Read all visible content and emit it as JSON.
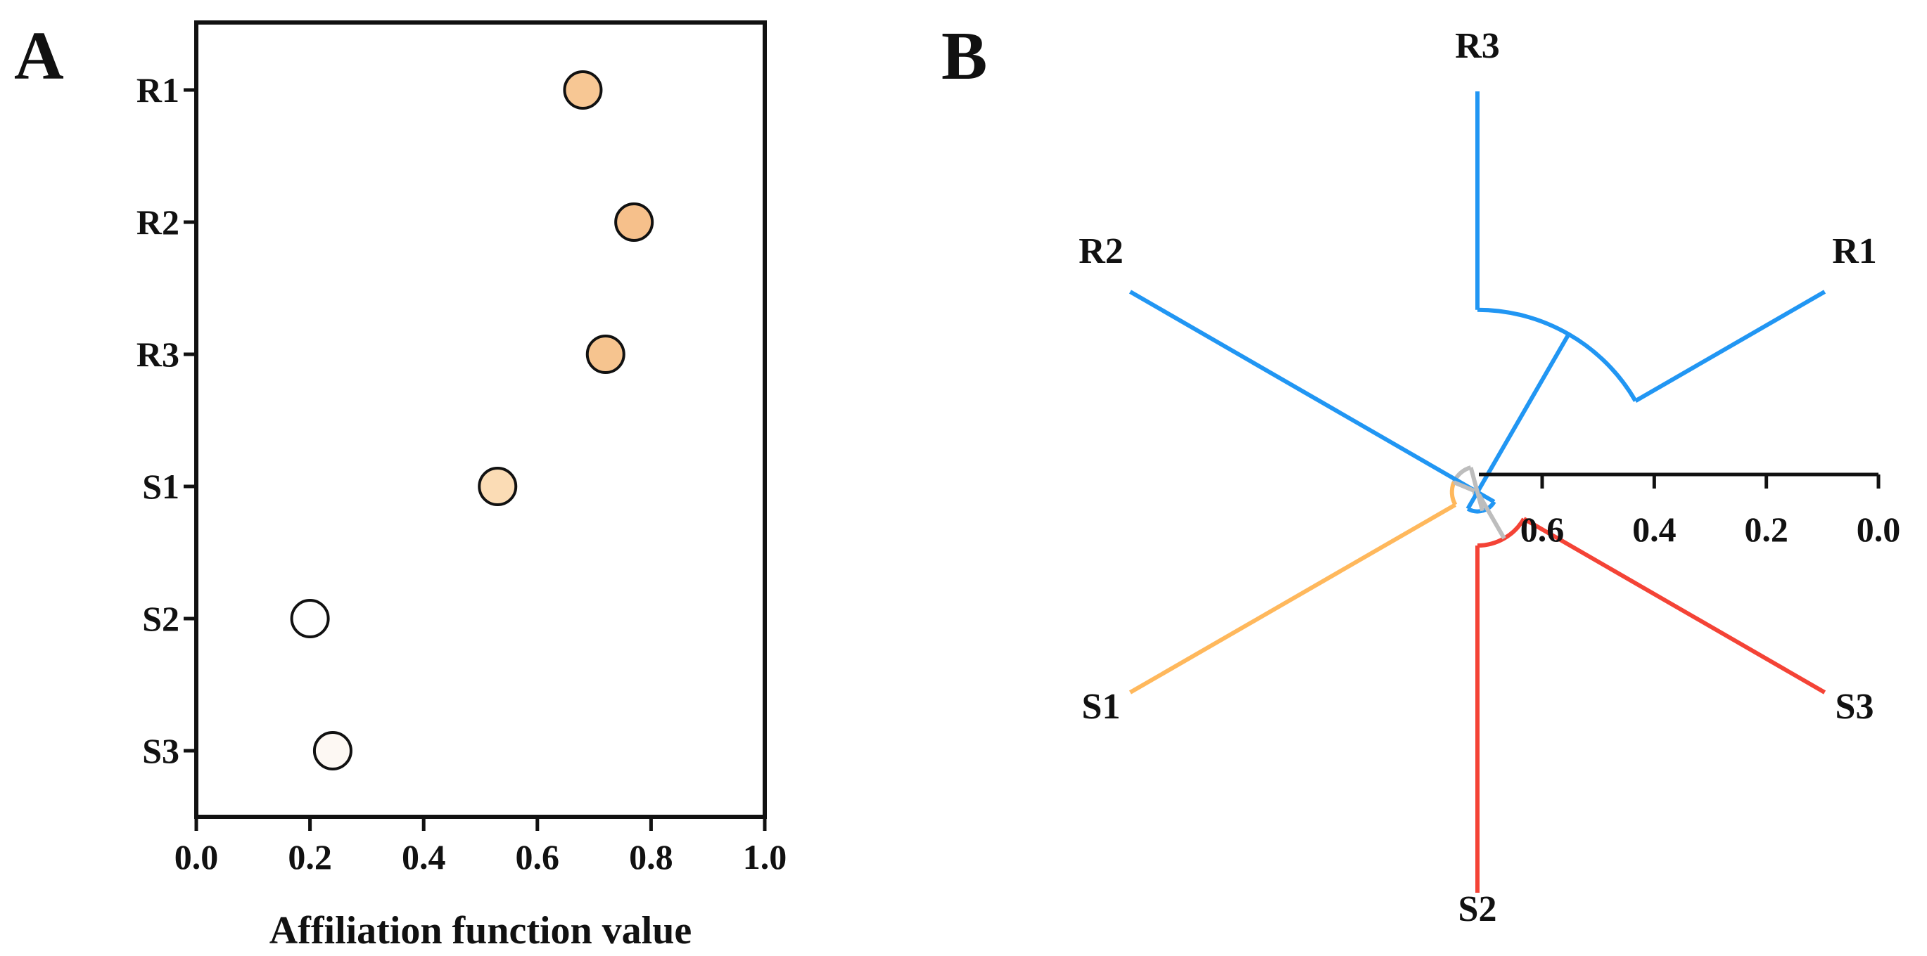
{
  "chart_data": [
    {
      "type": "scatter",
      "panel": "A",
      "title": "",
      "xlabel": "Affiliation function value",
      "ylabel": "",
      "xlim": [
        0.0,
        1.0
      ],
      "xticks": [
        0.0,
        0.2,
        0.4,
        0.6,
        0.8,
        1.0
      ],
      "xtick_labels": [
        "0.0",
        "0.2",
        "0.4",
        "0.6",
        "0.8",
        "1.0"
      ],
      "categories": [
        "R1",
        "R2",
        "R3",
        "S1",
        "S2",
        "S3"
      ],
      "values": [
        0.68,
        0.77,
        0.72,
        0.53,
        0.2,
        0.24
      ],
      "colors": [
        "#f7c794",
        "#f6c08b",
        "#f6c48f",
        "#fbdcb5",
        "#ffffff",
        "#fdf8f3"
      ]
    },
    {
      "type": "dendrogram",
      "panel": "B",
      "title": "",
      "layout": "circular",
      "leaves": [
        {
          "label": "R1",
          "color": "#2196f3"
        },
        {
          "label": "R2",
          "color": "#2196f3"
        },
        {
          "label": "R3",
          "color": "#2196f3"
        },
        {
          "label": "S1",
          "color": "#ffb85c"
        },
        {
          "label": "S2",
          "color": "#f44336"
        },
        {
          "label": "S3",
          "color": "#f44336"
        }
      ],
      "merges": [
        {
          "members": [
            "R3",
            "R1"
          ],
          "height": 0.39
        },
        {
          "members": [
            "R2",
            "R3",
            "R1"
          ],
          "height": 0.75
        },
        {
          "members": [
            "S2",
            "S3"
          ],
          "height": 0.62
        },
        {
          "members": [
            "S1",
            "R2",
            "R3",
            "R1"
          ],
          "height": 0.67
        },
        {
          "members": [
            "S1",
            "R2",
            "R3",
            "R1",
            "S2",
            "S3"
          ],
          "height": 0.71
        }
      ],
      "internal_color": "#bdbdbd",
      "scale": {
        "ticks": [
          0.6,
          0.4,
          0.2,
          0.0
        ],
        "tick_labels": [
          "0.6",
          "0.4",
          "0.2",
          "0.0"
        ],
        "range": [
          0.0,
          0.7
        ]
      }
    }
  ]
}
